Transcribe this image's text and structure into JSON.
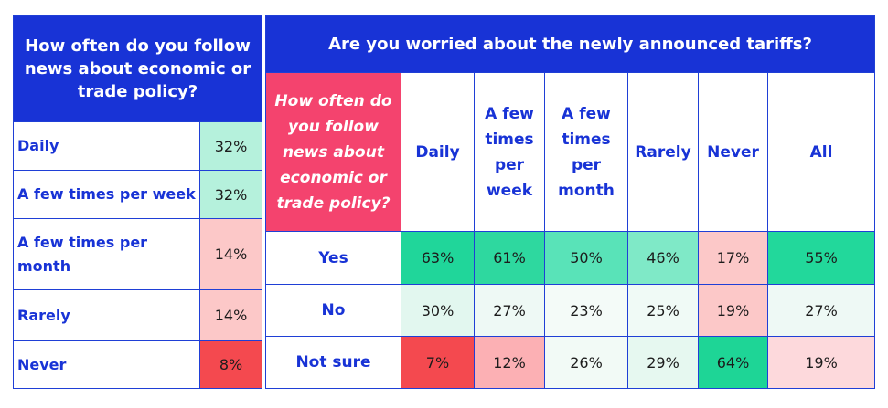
{
  "chart_data": [
    {
      "type": "table",
      "title": "How often do you follow news about economic or trade policy?",
      "rows": [
        {
          "label": "Daily",
          "value": "32%",
          "color": "#b5f1dc"
        },
        {
          "label": "A few times per week",
          "value": "32%",
          "color": "#b5f1dc"
        },
        {
          "label": "A few times per month",
          "value": "14%",
          "color": "#fcc8c8"
        },
        {
          "label": "Rarely",
          "value": "14%",
          "color": "#fcc8c8"
        },
        {
          "label": "Never",
          "value": "8%",
          "color": "#f4494f"
        }
      ]
    },
    {
      "type": "table",
      "title": "Are you worried about the newly announced tariffs?",
      "corner_label": "How often do you follow news about economic or trade policy?",
      "columns": [
        "Daily",
        "A few times per week",
        "A few times per month",
        "Rarely",
        "Never",
        "All"
      ],
      "rows": [
        {
          "label": "Yes",
          "values": [
            "63%",
            "61%",
            "50%",
            "46%",
            "17%",
            "55%"
          ],
          "colors": [
            "#20d69a",
            "#2ed89f",
            "#59e3b8",
            "#7fe9c7",
            "#fcc8c8",
            "#22d89b"
          ]
        },
        {
          "label": "No",
          "values": [
            "30%",
            "27%",
            "23%",
            "25%",
            "19%",
            "27%"
          ],
          "colors": [
            "#e2f7ef",
            "#eef9f5",
            "#f4fbf8",
            "#f0faf6",
            "#fcc8c8",
            "#eef9f5"
          ]
        },
        {
          "label": "Not sure",
          "values": [
            "7%",
            "12%",
            "26%",
            "29%",
            "64%",
            "19%"
          ],
          "colors": [
            "#f4494f",
            "#fcb0b4",
            "#f2faf6",
            "#e6f8f0",
            "#1ed596",
            "#fdd9dc"
          ]
        }
      ]
    }
  ]
}
